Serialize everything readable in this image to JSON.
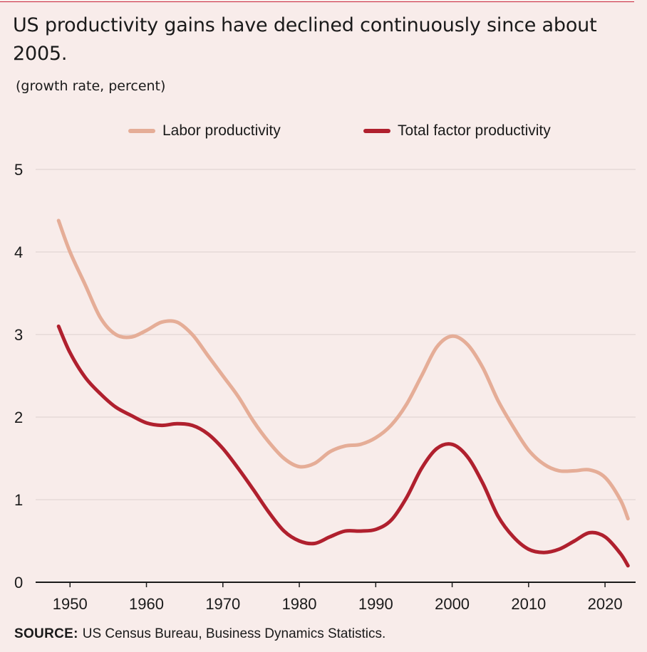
{
  "header": {
    "title": "US productivity gains have declined continuously since about 2005.",
    "subtitle": "(growth rate, percent)"
  },
  "source": {
    "label": "SOURCE:",
    "text": "US Census Bureau, Business Dynamics Statistics."
  },
  "colors": {
    "background": "#f8ecea",
    "labor": "#e5ad97",
    "tfp": "#b0202e",
    "grid": "#e2d6d4",
    "accent_rule": "#c8243a"
  },
  "chart_data": {
    "type": "line",
    "title": "US productivity gains have declined continuously since about 2005.",
    "ylabel": "(growth rate, percent)",
    "xlim": [
      1945.5,
      2024
    ],
    "ylim": [
      0,
      5
    ],
    "x_ticks": [
      1950,
      1960,
      1970,
      1980,
      1990,
      2000,
      2010,
      2020
    ],
    "y_ticks": [
      0,
      1,
      2,
      3,
      4,
      5
    ],
    "grid": "horizontal",
    "legend_position": "top",
    "series": [
      {
        "name": "Labor productivity",
        "color": "#e5ad97",
        "points": [
          [
            1948.5,
            4.38
          ],
          [
            1950,
            4.0
          ],
          [
            1952,
            3.6
          ],
          [
            1954,
            3.2
          ],
          [
            1956,
            3.0
          ],
          [
            1958,
            2.97
          ],
          [
            1960,
            3.05
          ],
          [
            1962,
            3.15
          ],
          [
            1964,
            3.15
          ],
          [
            1966,
            3.0
          ],
          [
            1968,
            2.75
          ],
          [
            1970,
            2.5
          ],
          [
            1972,
            2.25
          ],
          [
            1974,
            1.95
          ],
          [
            1976,
            1.7
          ],
          [
            1978,
            1.5
          ],
          [
            1980,
            1.4
          ],
          [
            1982,
            1.44
          ],
          [
            1984,
            1.58
          ],
          [
            1986,
            1.65
          ],
          [
            1988,
            1.67
          ],
          [
            1990,
            1.75
          ],
          [
            1992,
            1.9
          ],
          [
            1994,
            2.15
          ],
          [
            1996,
            2.5
          ],
          [
            1998,
            2.85
          ],
          [
            2000,
            2.98
          ],
          [
            2002,
            2.88
          ],
          [
            2004,
            2.6
          ],
          [
            2006,
            2.2
          ],
          [
            2008,
            1.88
          ],
          [
            2010,
            1.6
          ],
          [
            2012,
            1.43
          ],
          [
            2014,
            1.35
          ],
          [
            2016,
            1.35
          ],
          [
            2018,
            1.36
          ],
          [
            2020,
            1.27
          ],
          [
            2022,
            1.0
          ],
          [
            2023,
            0.77
          ]
        ]
      },
      {
        "name": "Total factor productivity",
        "color": "#b0202e",
        "points": [
          [
            1948.5,
            3.1
          ],
          [
            1950,
            2.78
          ],
          [
            1952,
            2.48
          ],
          [
            1954,
            2.28
          ],
          [
            1956,
            2.12
          ],
          [
            1958,
            2.02
          ],
          [
            1960,
            1.93
          ],
          [
            1962,
            1.9
          ],
          [
            1964,
            1.92
          ],
          [
            1966,
            1.9
          ],
          [
            1968,
            1.8
          ],
          [
            1970,
            1.62
          ],
          [
            1972,
            1.38
          ],
          [
            1974,
            1.12
          ],
          [
            1976,
            0.85
          ],
          [
            1978,
            0.62
          ],
          [
            1980,
            0.5
          ],
          [
            1982,
            0.47
          ],
          [
            1984,
            0.55
          ],
          [
            1986,
            0.62
          ],
          [
            1988,
            0.62
          ],
          [
            1990,
            0.64
          ],
          [
            1992,
            0.75
          ],
          [
            1994,
            1.02
          ],
          [
            1996,
            1.38
          ],
          [
            1998,
            1.62
          ],
          [
            2000,
            1.67
          ],
          [
            2002,
            1.52
          ],
          [
            2004,
            1.2
          ],
          [
            2006,
            0.8
          ],
          [
            2008,
            0.55
          ],
          [
            2010,
            0.4
          ],
          [
            2012,
            0.36
          ],
          [
            2014,
            0.4
          ],
          [
            2016,
            0.5
          ],
          [
            2018,
            0.6
          ],
          [
            2020,
            0.55
          ],
          [
            2022,
            0.35
          ],
          [
            2023,
            0.2
          ]
        ]
      }
    ]
  }
}
